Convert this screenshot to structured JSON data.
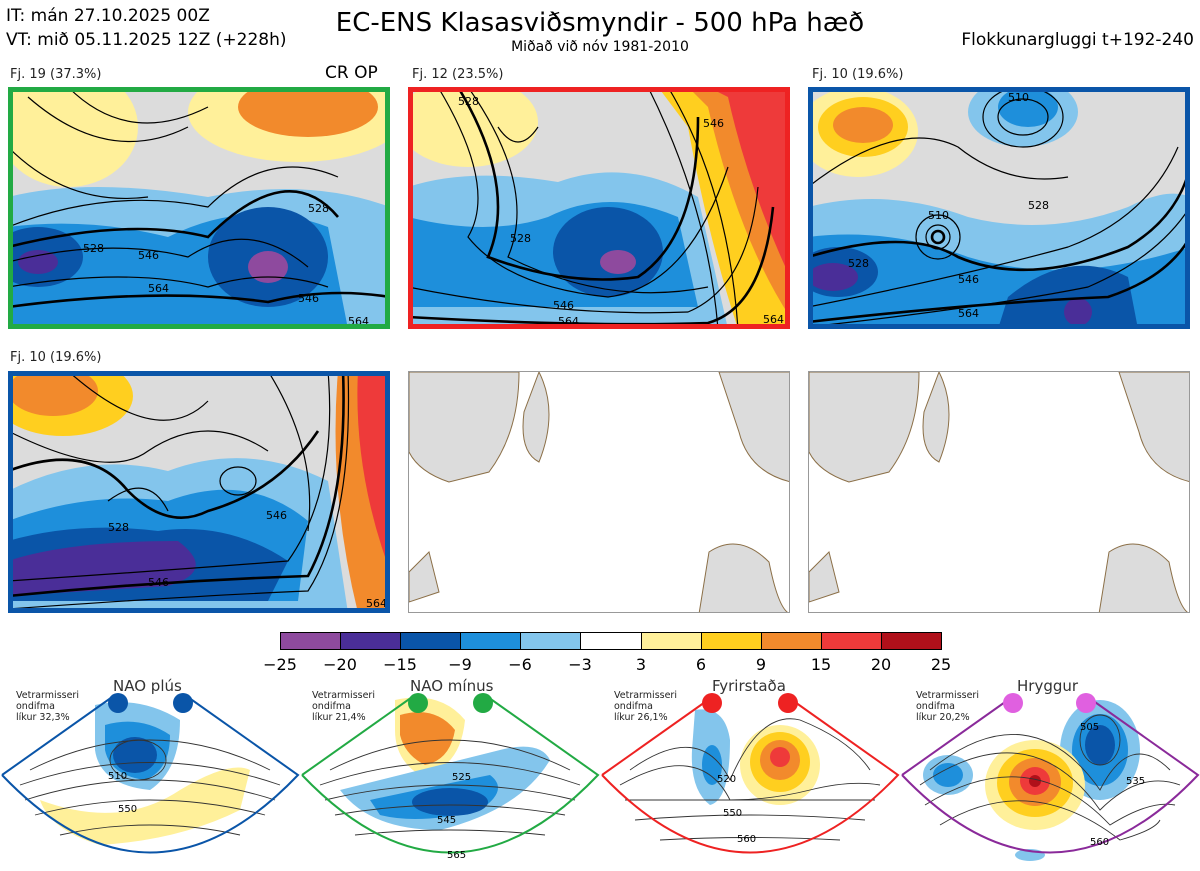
{
  "header": {
    "it_line": "IT: mán 27.10.2025 00Z",
    "vt_line": "VT: mið 05.11.2025 12Z  (+228h)",
    "title": "EC-ENS Klasasviðsmyndir - 500 hPa hæð",
    "subtitle": "Miðað við nóv 1981-2010",
    "right": "Flokkunargluggi t+192-240"
  },
  "clusters": [
    {
      "label": "Fj. 19 (37.3%)",
      "border": "#22aa44",
      "tag": "CR OP",
      "contours": [
        "528",
        "546",
        "564",
        "528",
        "546",
        "564"
      ]
    },
    {
      "label": "Fj. 12 (23.5%)",
      "border": "#ee2222",
      "tag": "",
      "contours": [
        "528",
        "546",
        "528",
        "564",
        "546",
        "564"
      ]
    },
    {
      "label": "Fj. 10 (19.6%)",
      "border": "#0a55a8",
      "tag": "",
      "contours": [
        "510",
        "528",
        "510",
        "528",
        "546",
        "564"
      ]
    },
    {
      "label": "Fj. 10 (19.6%)",
      "border": "#0a55a8",
      "tag": "",
      "contours": [
        "528",
        "546",
        "546",
        "564"
      ]
    }
  ],
  "colorbar": {
    "colors": [
      "#8e4a9e",
      "#4a2e98",
      "#0a55a8",
      "#1e8fdb",
      "#83c5ec",
      "#ffffff",
      "#fff09a",
      "#ffcf1f",
      "#f28a2c",
      "#ee3a3a",
      "#b0101a"
    ],
    "ticks": [
      "−25",
      "−20",
      "−15",
      "−9",
      "−6",
      "−3",
      "3",
      "6",
      "9",
      "15",
      "20",
      "25"
    ]
  },
  "regimes": [
    {
      "title": "NAO plús",
      "note": [
        "Vetrarmisseri",
        "ondifma",
        "líkur 32,3%"
      ],
      "color": "#0a55a8",
      "labels": [
        "510",
        "550"
      ]
    },
    {
      "title": "NAO mínus",
      "note": [
        "Vetrarmisseri",
        "ondifma",
        "líkur 21,4%"
      ],
      "color": "#22aa44",
      "labels": [
        "525",
        "545",
        "565"
      ]
    },
    {
      "title": "Fyrirstaða",
      "note": [
        "Vetrarmisseri",
        "ondifma",
        "líkur 26,1%"
      ],
      "color": "#ee2222",
      "labels": [
        "520",
        "550",
        "560"
      ]
    },
    {
      "title": "Hryggur",
      "note": [
        "Vetrarmisseri",
        "ondifma",
        "líkur 20,2%"
      ],
      "color": "#e060e0",
      "labels": [
        "505",
        "535",
        "560"
      ]
    }
  ]
}
